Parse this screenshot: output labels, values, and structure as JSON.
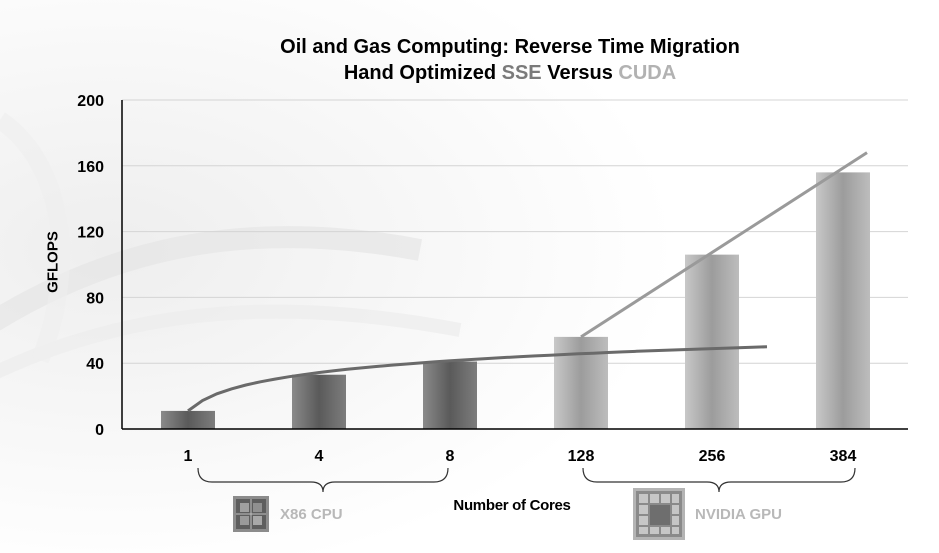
{
  "title": {
    "line1": "Oil and Gas Computing: Reverse Time Migration",
    "line2_prefix": "Hand Optimized ",
    "line2_sse": "SSE",
    "line2_mid": " Versus ",
    "line2_cuda": "CUDA"
  },
  "groups": {
    "cpu_label": "X86 CPU",
    "gpu_label": "NVIDIA GPU"
  },
  "colors": {
    "sse": "#7a7a7a",
    "cuda": "#b2b2b2",
    "cpu_bar": "#6f6f6f",
    "gpu_bar": "#b0b0b0",
    "cpu_trend": "#6a6a6a",
    "gpu_trend": "#9a9a9a"
  },
  "chart_data": {
    "type": "bar",
    "title": "Oil and Gas Computing: Reverse Time Migration Hand Optimized SSE Versus CUDA",
    "xlabel": "Number of Cores",
    "ylabel": "GFLOPS",
    "categories": [
      "1",
      "4",
      "8",
      "128",
      "256",
      "384"
    ],
    "values": [
      11,
      33,
      41,
      56,
      106,
      156
    ],
    "ylim": [
      0,
      200
    ],
    "yticks": [
      0,
      40,
      80,
      120,
      160,
      200
    ],
    "grid": true,
    "bar_groups": [
      {
        "name": "X86 CPU",
        "categories": [
          "1",
          "4",
          "8"
        ]
      },
      {
        "name": "NVIDIA GPU",
        "categories": [
          "128",
          "256",
          "384"
        ]
      }
    ],
    "trendlines": [
      {
        "name": "SSE",
        "type": "logarithmic",
        "x_start": "1",
        "x_end": "384",
        "y_start": 11,
        "y_end": 50
      },
      {
        "name": "CUDA",
        "type": "linear",
        "x_start": "128",
        "x_end": "384",
        "y_start": 56,
        "y_end": 168
      }
    ]
  }
}
